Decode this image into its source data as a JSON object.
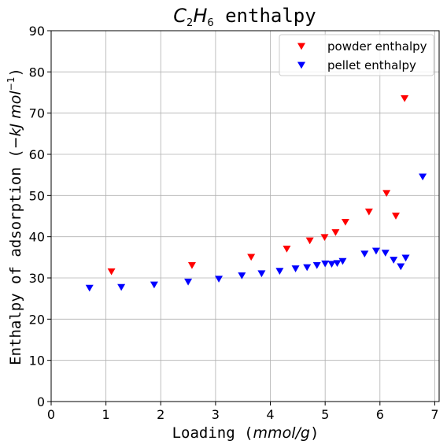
{
  "chart_data": {
    "type": "scatter",
    "title": {
      "prefix": "C",
      "sub1": "2",
      "mid": "H",
      "sub2": "6",
      "suffix": " enthalpy"
    },
    "xlabel": {
      "text": "Loading (",
      "unit": "mmol/g",
      "close": ")"
    },
    "ylabel": {
      "text": "Enthalpy of adsorption (",
      "unit": "−kJ mol",
      "exp": "−1",
      "close": ")"
    },
    "xlim": [
      0,
      7.08
    ],
    "ylim": [
      0,
      90
    ],
    "xticks": [
      0,
      1,
      2,
      3,
      4,
      5,
      6,
      7
    ],
    "yticks": [
      0,
      10,
      20,
      30,
      40,
      50,
      60,
      70,
      80,
      90
    ],
    "grid": true,
    "legend_position": "top-right",
    "marker": "triangle-down",
    "series": [
      {
        "name": "powder enthalpy",
        "color": "#ff0000",
        "x": [
          1.1,
          2.57,
          3.65,
          4.3,
          4.72,
          4.99,
          5.19,
          5.37,
          5.8,
          6.12,
          6.29,
          6.45
        ],
        "y": [
          31.5,
          33.0,
          35.0,
          37.0,
          39.0,
          39.8,
          41.0,
          43.5,
          46.0,
          50.5,
          45.0,
          73.5
        ]
      },
      {
        "name": "pellet enthalpy",
        "color": "#0000ff",
        "x": [
          0.7,
          1.28,
          1.88,
          2.5,
          3.06,
          3.48,
          3.84,
          4.17,
          4.46,
          4.67,
          4.85,
          5.0,
          5.12,
          5.22,
          5.32,
          5.72,
          5.93,
          6.1,
          6.25,
          6.38,
          6.47,
          6.78
        ],
        "y": [
          27.5,
          27.7,
          28.3,
          29.0,
          29.7,
          30.5,
          31.0,
          31.6,
          32.2,
          32.5,
          33.0,
          33.4,
          33.3,
          33.5,
          34.0,
          35.8,
          36.5,
          36.0,
          34.3,
          32.7,
          34.8,
          54.5
        ]
      }
    ]
  }
}
